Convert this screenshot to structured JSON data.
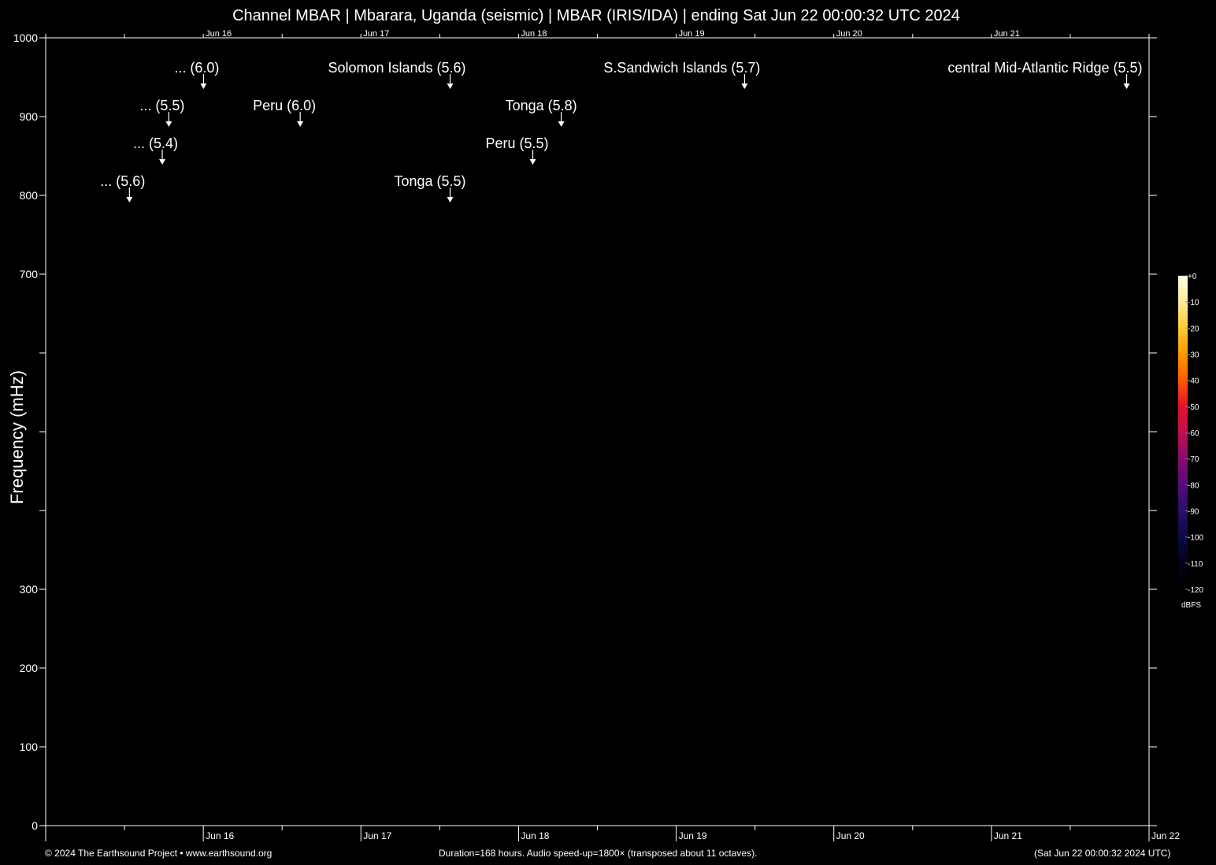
{
  "title": "Channel MBAR | Mbarara, Uganda (seismic) | MBAR (IRIS/IDA) | ending Sat Jun 22 00:00:32 UTC 2024",
  "footer": {
    "left": "© 2024 The Earthsound Project • www.earthsound.org",
    "center": "Duration=168 hours. Audio speed-up=1800× (transposed about 11 octaves).",
    "right": "(Sat Jun 22 00:00:32 2024 UTC)"
  },
  "chart_data": {
    "type": "heatmap",
    "title": "Channel MBAR | Mbarara, Uganda (seismic) | MBAR (IRIS/IDA) | ending Sat Jun 22 00:00:32 UTC 2024",
    "ylabel": "Frequency (mHz)",
    "xlabel": "",
    "xlim": [
      "Jun 15 00:00",
      "Jun 22 00:00"
    ],
    "ylim": [
      0,
      1000
    ],
    "yticks_labeled": [
      0,
      100,
      200,
      300,
      700,
      800,
      900,
      1000
    ],
    "yticks_unlabeled": [
      400,
      500,
      600
    ],
    "x_day_labels_bottom": [
      "Jun 16",
      "Jun 17",
      "Jun 18",
      "Jun 19",
      "Jun 20",
      "Jun 21",
      "Jun 22"
    ],
    "x_day_labels_top": [
      "Jun 16",
      "Jun 17",
      "Jun 18",
      "Jun 19",
      "Jun 20",
      "Jun 21"
    ],
    "x_minor_step_hours": 6,
    "background": "#000000",
    "events": [
      {
        "label": "... (6.0)",
        "time": "Jun 16 00:02"
      },
      {
        "label": "... (5.5)",
        "time": "Jun 15 18:45"
      },
      {
        "label": "... (5.4)",
        "time": "Jun 15 17:45"
      },
      {
        "label": "... (5.6)",
        "time": "Jun 15 12:45"
      },
      {
        "label": "Solomon Islands (5.6)",
        "time": "Jun 17 13:35"
      },
      {
        "label": "Peru (6.0)",
        "time": "Jun 16 14:45"
      },
      {
        "label": "Tonga (5.5)",
        "time": "Jun 17 13:35"
      },
      {
        "label": "Tonga (5.8)",
        "time": "Jun 18 06:30"
      },
      {
        "label": "Peru (5.5)",
        "time": "Jun 18 02:10"
      },
      {
        "label": "S.Sandwich Islands (5.7)",
        "time": "Jun 19 10:25"
      },
      {
        "label": "central Mid-Atlantic Ridge (5.5)",
        "time": "Jun 21 20:35"
      }
    ],
    "colorbar": {
      "unit": "dBFS",
      "ticks": [
        "+0",
        "-10",
        "-20",
        "-30",
        "-40",
        "-50",
        "-60",
        "-70",
        "-80",
        "-90",
        "-100",
        "-110",
        "-120"
      ],
      "colors": [
        "#ffffe8",
        "#ffec9a",
        "#ffcc33",
        "#ff9900",
        "#ff5a00",
        "#e8102a",
        "#c0104e",
        "#8a0a6e",
        "#560b7c",
        "#2a0f6a",
        "#0b0a45",
        "#020218",
        "#000000"
      ]
    }
  }
}
